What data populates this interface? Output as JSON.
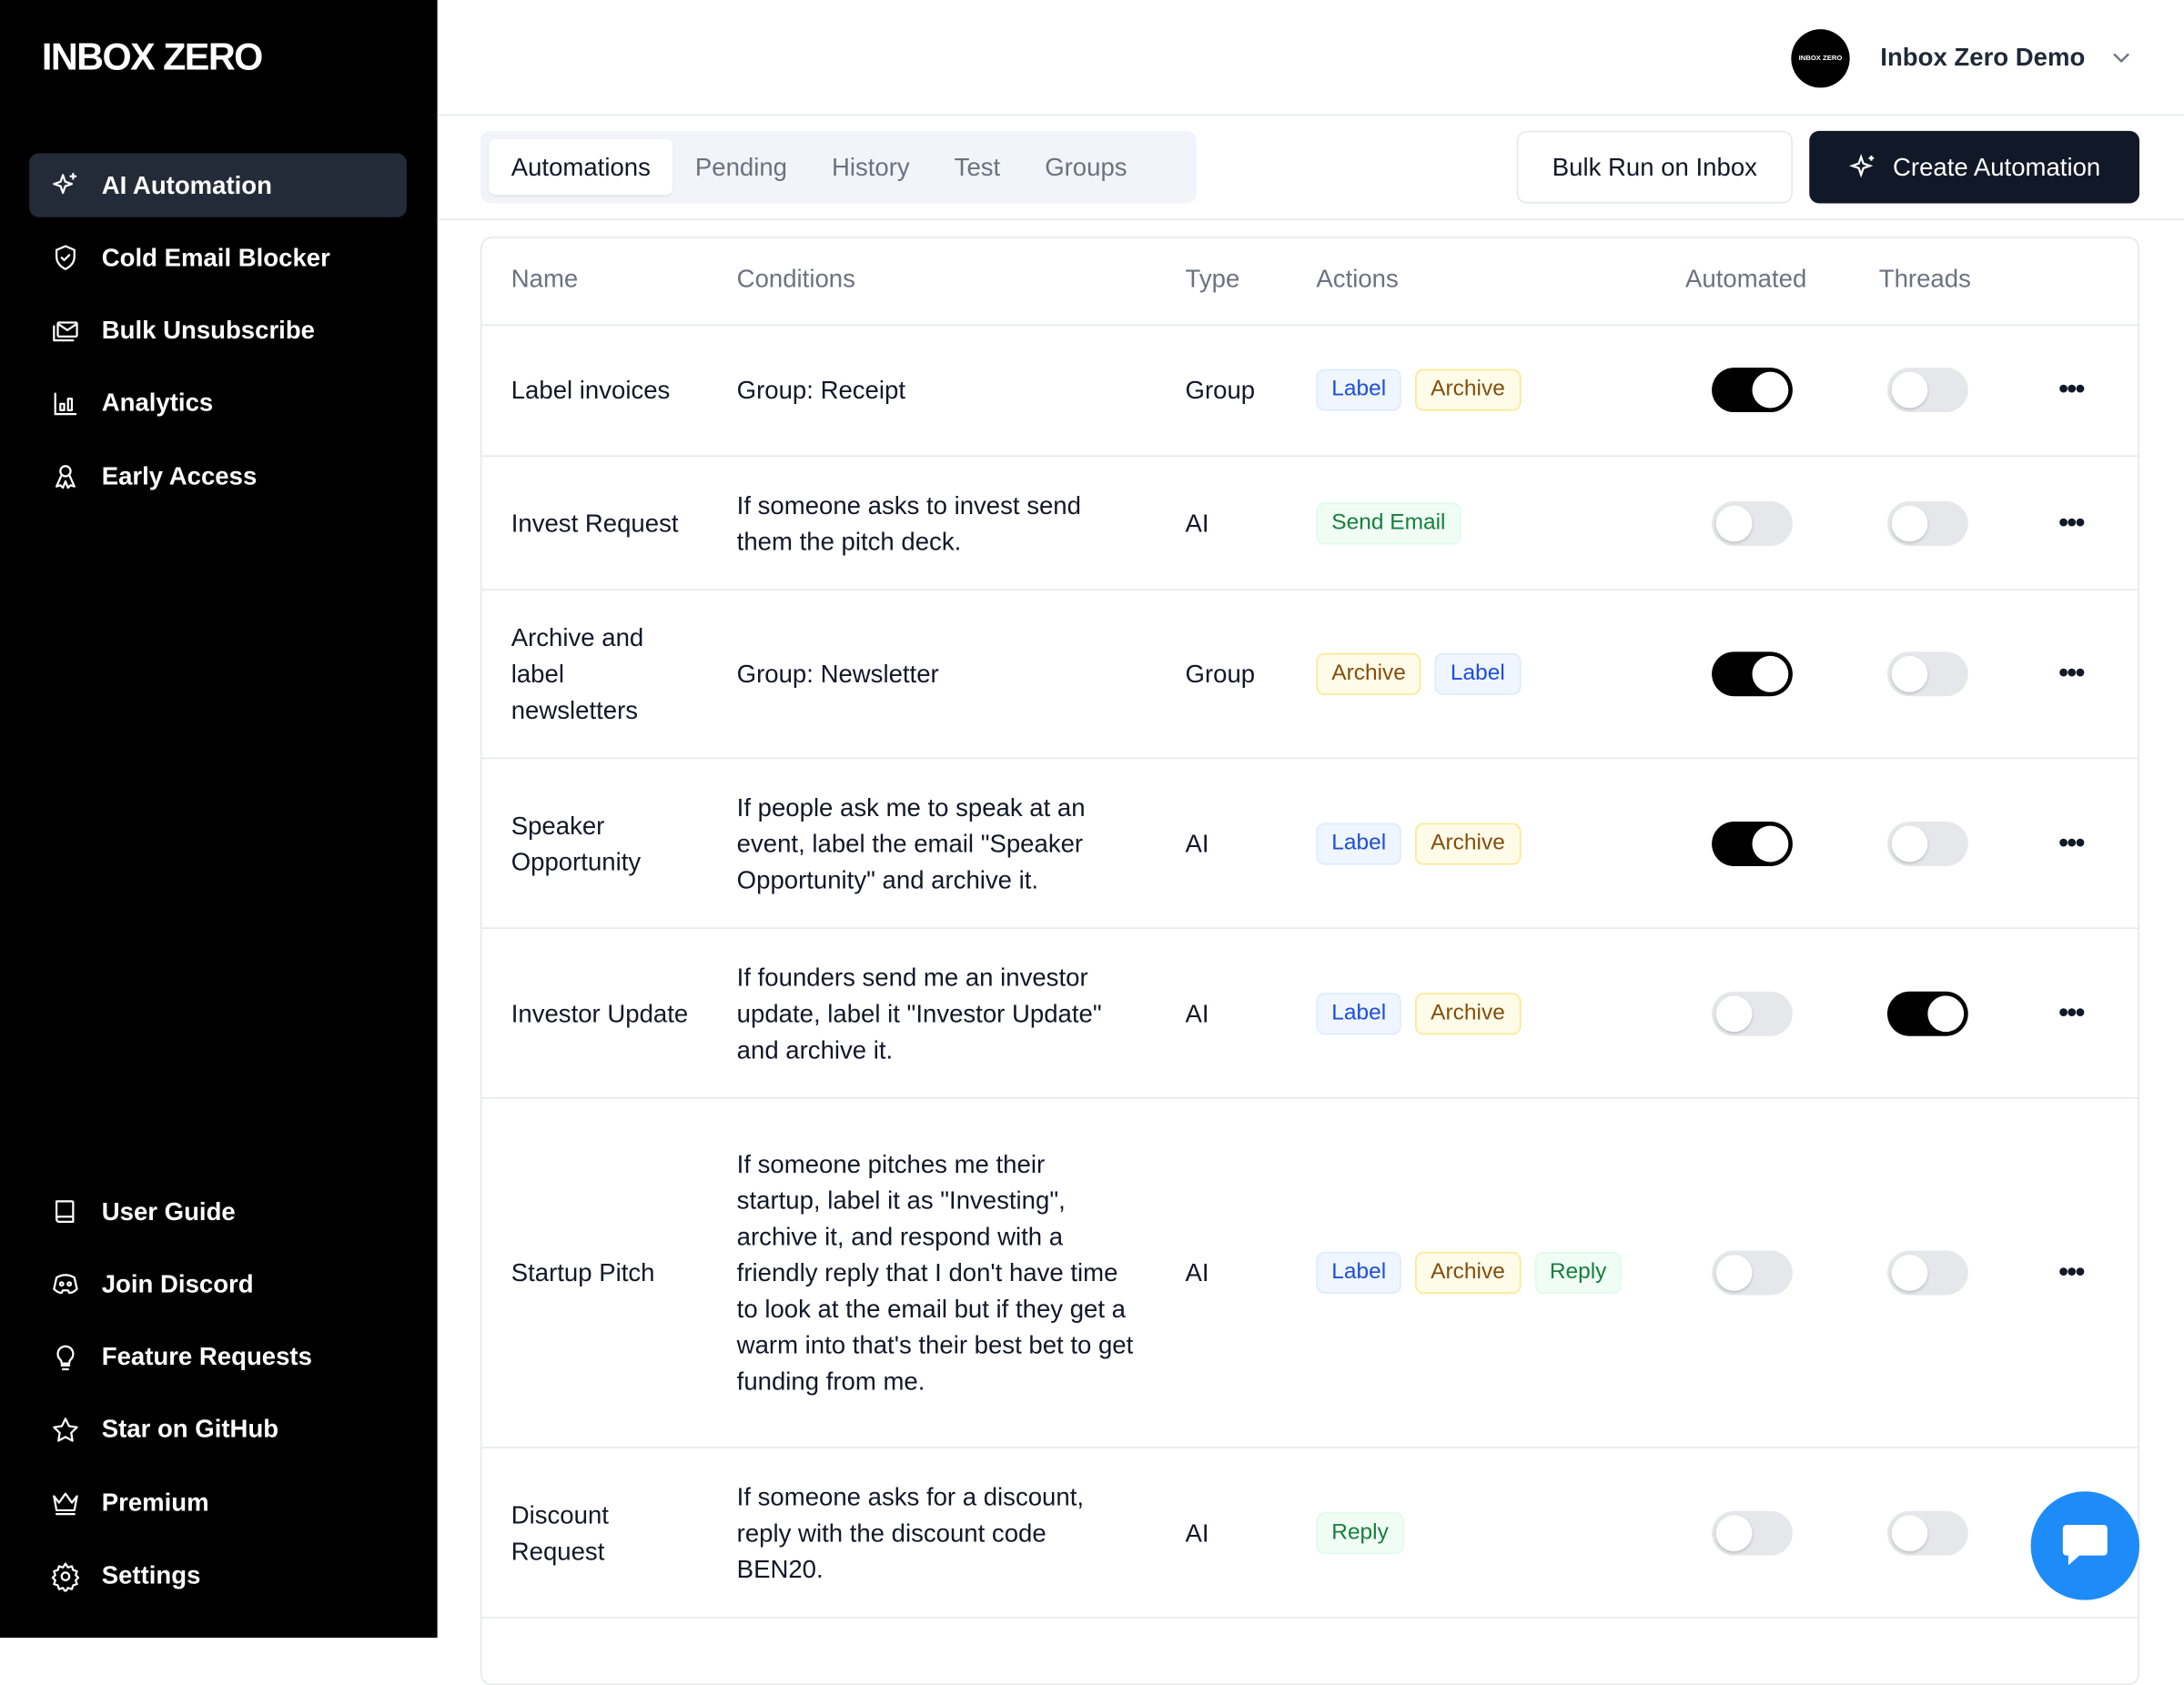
{
  "app": {
    "logo": "INBOX ZERO"
  },
  "sidebar": {
    "items": [
      {
        "label": "AI Automation",
        "icon": "sparkles-icon",
        "active": true
      },
      {
        "label": "Cold Email Blocker",
        "icon": "shield-check-icon"
      },
      {
        "label": "Bulk Unsubscribe",
        "icon": "mail-stack-icon"
      },
      {
        "label": "Analytics",
        "icon": "bar-chart-icon"
      },
      {
        "label": "Early Access",
        "icon": "ribbon-icon"
      }
    ],
    "bottom_items": [
      {
        "label": "User Guide",
        "icon": "book-icon"
      },
      {
        "label": "Join Discord",
        "icon": "discord-icon"
      },
      {
        "label": "Feature Requests",
        "icon": "lightbulb-icon"
      },
      {
        "label": "Star on GitHub",
        "icon": "star-icon"
      },
      {
        "label": "Premium",
        "icon": "crown-icon"
      },
      {
        "label": "Settings",
        "icon": "gear-icon"
      }
    ]
  },
  "header": {
    "user_name": "Inbox Zero Demo",
    "avatar_text": "INBOX ZERO"
  },
  "tabs": [
    {
      "label": "Automations",
      "active": true
    },
    {
      "label": "Pending"
    },
    {
      "label": "History"
    },
    {
      "label": "Test"
    },
    {
      "label": "Groups"
    }
  ],
  "toolbar": {
    "bulk_run": "Bulk Run on Inbox",
    "create": "Create Automation"
  },
  "table": {
    "headers": [
      "Name",
      "Conditions",
      "Type",
      "Actions",
      "Automated",
      "Threads"
    ],
    "rows": [
      {
        "name": "Label invoices",
        "conditions": "Group: Receipt",
        "type": "Group",
        "actions": [
          "Label",
          "Archive"
        ],
        "automated": true,
        "threads": false
      },
      {
        "name": "Invest Request",
        "conditions": "If someone asks to invest send them the pitch deck.",
        "type": "AI",
        "actions": [
          "Send Email"
        ],
        "automated": false,
        "threads": false
      },
      {
        "name": "Archive and label newsletters",
        "conditions": "Group: Newsletter",
        "type": "Group",
        "actions": [
          "Archive",
          "Label"
        ],
        "automated": true,
        "threads": false
      },
      {
        "name": "Speaker Opportunity",
        "conditions": "If people ask me to speak at an event, label the email \"Speaker Opportunity\" and archive it.",
        "type": "AI",
        "actions": [
          "Label",
          "Archive"
        ],
        "automated": true,
        "threads": false
      },
      {
        "name": "Investor Update",
        "conditions": "If founders send me an investor update, label it \"Investor Update\" and archive it.",
        "type": "AI",
        "actions": [
          "Label",
          "Archive"
        ],
        "automated": false,
        "threads": true
      },
      {
        "name": "Startup Pitch",
        "conditions": "If someone pitches me their startup, label it as \"Investing\", archive it, and respond with a friendly reply that I don't have time to look at the email but if they get a warm into that's their best bet to get funding from me.",
        "type": "AI",
        "actions": [
          "Label",
          "Archive",
          "Reply"
        ],
        "automated": false,
        "threads": false
      },
      {
        "name": "Discount Request",
        "conditions": "If someone asks for a discount, reply with the discount code BEN20.",
        "type": "AI",
        "actions": [
          "Reply"
        ],
        "automated": false,
        "threads": false
      }
    ]
  },
  "colors": {
    "sidebar": "#000000",
    "active_nav": "#232b38",
    "primary_button": "#111827",
    "chat": "#1d8cf8"
  }
}
